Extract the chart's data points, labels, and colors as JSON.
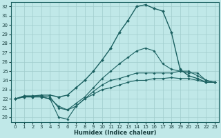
{
  "xlabel": "Humidex (Indice chaleur)",
  "bg_color": "#c0e8e8",
  "grid_color": "#a0cccc",
  "line_color": "#1a6060",
  "xlim": [
    -0.5,
    23.5
  ],
  "ylim": [
    19.5,
    32.5
  ],
  "xticks": [
    0,
    1,
    2,
    3,
    4,
    5,
    6,
    7,
    8,
    9,
    10,
    11,
    12,
    13,
    14,
    15,
    16,
    17,
    18,
    19,
    20,
    21,
    22,
    23
  ],
  "yticks": [
    20,
    21,
    22,
    23,
    24,
    25,
    26,
    27,
    28,
    29,
    30,
    31,
    32
  ],
  "lines": [
    {
      "x": [
        0,
        1,
        2,
        3,
        4,
        5,
        6,
        7,
        8,
        9,
        10,
        11,
        12,
        13,
        14,
        15,
        16,
        17,
        18,
        19,
        20,
        21,
        22,
        23
      ],
      "y": [
        22.0,
        22.3,
        22.3,
        22.4,
        22.4,
        22.2,
        22.4,
        23.2,
        24.0,
        25.0,
        26.2,
        27.5,
        29.2,
        30.5,
        32.0,
        32.2,
        31.8,
        31.5,
        29.2,
        25.2,
        24.5,
        24.2,
        23.8,
        23.8
      ],
      "lw": 1.0,
      "ms": 2.2
    },
    {
      "x": [
        0,
        1,
        2,
        3,
        4,
        5,
        6,
        7,
        8,
        9,
        10,
        11,
        12,
        13,
        14,
        15,
        16,
        17,
        18,
        19,
        20,
        21,
        22,
        23
      ],
      "y": [
        22.0,
        22.2,
        22.2,
        22.2,
        22.0,
        21.2,
        20.8,
        21.5,
        22.2,
        23.2,
        24.2,
        25.0,
        25.8,
        26.5,
        27.2,
        27.5,
        27.2,
        25.8,
        25.2,
        25.0,
        24.8,
        24.8,
        24.0,
        23.8
      ],
      "lw": 0.8,
      "ms": 1.8
    },
    {
      "x": [
        0,
        1,
        2,
        3,
        4,
        5,
        6,
        7,
        8,
        9,
        10,
        11,
        12,
        13,
        14,
        15,
        16,
        17,
        18,
        19,
        20,
        21,
        22,
        23
      ],
      "y": [
        22.0,
        22.3,
        22.3,
        22.3,
        22.2,
        21.0,
        20.8,
        21.2,
        22.0,
        22.8,
        23.5,
        24.0,
        24.2,
        24.5,
        24.8,
        24.8,
        24.8,
        24.8,
        24.8,
        25.0,
        25.0,
        24.5,
        24.0,
        23.8
      ],
      "lw": 0.8,
      "ms": 1.8
    },
    {
      "x": [
        0,
        1,
        2,
        3,
        4,
        5,
        6,
        7,
        8,
        9,
        10,
        11,
        12,
        13,
        14,
        15,
        16,
        17,
        18,
        19,
        20,
        21,
        22,
        23
      ],
      "y": [
        22.0,
        22.2,
        22.2,
        22.2,
        22.0,
        20.0,
        19.8,
        21.2,
        22.0,
        22.5,
        23.0,
        23.2,
        23.5,
        23.8,
        24.0,
        24.0,
        24.2,
        24.2,
        24.3,
        24.2,
        24.2,
        24.0,
        23.8,
        23.8
      ],
      "lw": 0.8,
      "ms": 1.8
    }
  ]
}
